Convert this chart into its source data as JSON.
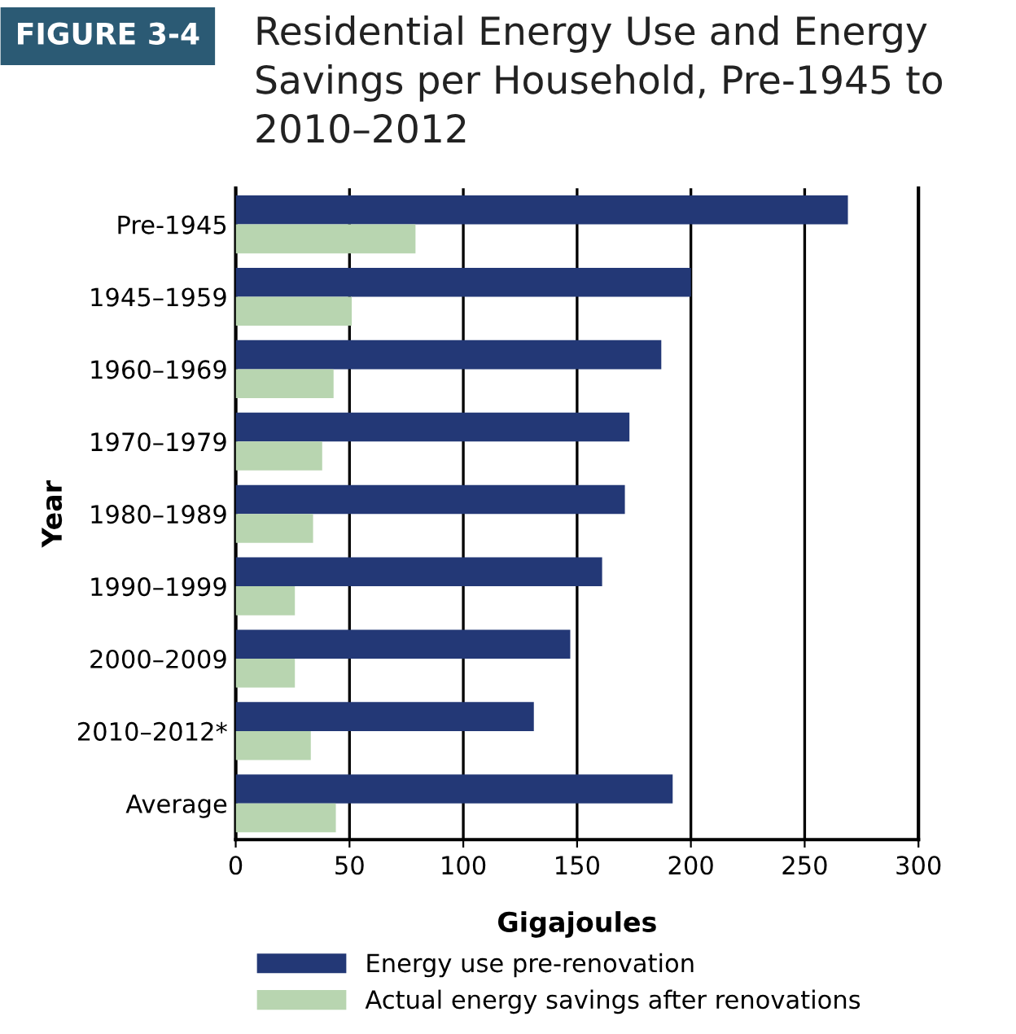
{
  "chart_data": {
    "type": "bar",
    "orientation": "horizontal",
    "title": "Residential Energy Use and Energy Savings per Household, Pre-1945 to 2010–2012",
    "annotations": [
      "FIGURE 3-4"
    ],
    "xlabel": "Gigajoules",
    "ylabel": "Year",
    "categories": [
      "Pre-1945",
      "1945–1959",
      "1960–1969",
      "1970–1979",
      "1980–1989",
      "1990–1999",
      "2000–2009",
      "2010–2012*",
      "Average"
    ],
    "series": [
      {
        "name": "Energy use pre-renovation",
        "color": "#233876",
        "values": [
          269,
          200,
          187,
          173,
          171,
          161,
          147,
          131,
          192
        ]
      },
      {
        "name": "Actual energy savings after renovations",
        "color": "#b8d5b0",
        "values": [
          79,
          51,
          43,
          38,
          34,
          26,
          26,
          33,
          44
        ]
      }
    ],
    "xlim": [
      0,
      300
    ],
    "xticks": [
      0,
      50,
      100,
      150,
      200,
      250,
      300
    ],
    "grid": "x",
    "legend": "bottom"
  }
}
